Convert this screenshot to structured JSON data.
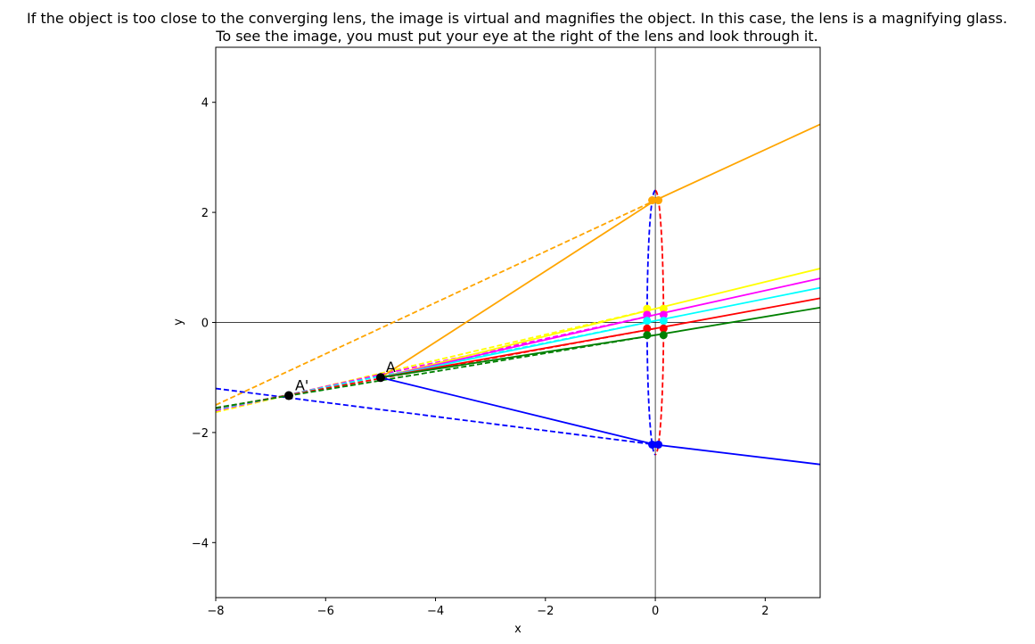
{
  "chart_data": {
    "type": "line",
    "title_lines": [
      "If the object is too close to the converging lens, the image is virtual and magnifies the object. In this case, the lens is a magnifying glass.",
      "To see the image, you must put your eye at the right of the lens and look through it."
    ],
    "xlabel": "x",
    "ylabel": "y",
    "xlim": [
      -8,
      3
    ],
    "ylim": [
      -5,
      5
    ],
    "x_ticks": [
      -8,
      -6,
      -4,
      -2,
      0,
      2
    ],
    "x_tick_labels": [
      "−8",
      "−6",
      "−4",
      "−2",
      "0",
      "2"
    ],
    "y_ticks": [
      -4,
      -2,
      0,
      2,
      4
    ],
    "y_tick_labels": [
      "−4",
      "−2",
      "0",
      "2",
      "4"
    ],
    "grid": false,
    "reference_lines": {
      "x": 0,
      "y": 0
    },
    "lens": {
      "center_x": 0,
      "half_height": 2.4,
      "half_width": 0.15,
      "left_face_color": "#0000ff",
      "right_face_color": "#ff0000"
    },
    "object_point": {
      "label": "A",
      "x": -5,
      "y": -1
    },
    "image_point": {
      "label": "A'",
      "x": -6.67,
      "y": -1.33
    },
    "rays": [
      {
        "color": "#ffa500",
        "y_hit": 2.22,
        "y_exit_right": 3.6
      },
      {
        "color": "#0000ff",
        "y_hit": -2.22,
        "y_exit_right": -2.58
      },
      {
        "color": "#ffff00",
        "y_hit": 0.25,
        "y_exit_right": 0.98
      },
      {
        "color": "#ff00ff",
        "y_hit": 0.14,
        "y_exit_right": 0.8
      },
      {
        "color": "#00ffff",
        "y_hit": 0.03,
        "y_exit_right": 0.63
      },
      {
        "color": "#ff0000",
        "y_hit": -0.11,
        "y_exit_right": 0.44
      },
      {
        "color": "#008000",
        "y_hit": -0.23,
        "y_exit_right": 0.27
      }
    ],
    "virtual_rays": [
      {
        "color": "#ffa500",
        "x_start": -8,
        "y_start": -1.5
      },
      {
        "color": "#0000ff",
        "x_start": -8,
        "y_start": -1.2
      },
      {
        "color": "#ffff00",
        "x_start": -8,
        "y_start": -1.63
      },
      {
        "color": "#ff00ff",
        "x_start": -8,
        "y_start": -1.6
      },
      {
        "color": "#00ffff",
        "x_start": -8,
        "y_start": -1.58
      },
      {
        "color": "#ff0000",
        "x_start": -8,
        "y_start": -1.56
      },
      {
        "color": "#008000",
        "x_start": -8,
        "y_start": -1.55
      }
    ],
    "point_marker_color": "#000000"
  }
}
